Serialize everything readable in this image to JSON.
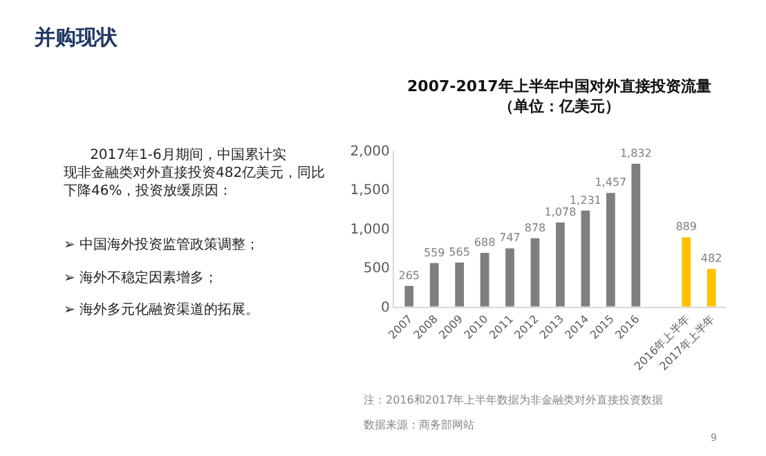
{
  "chart_data": {
    "type": "bar",
    "title": "2007-2017年上半年中国对外直接投资流量",
    "subtitle": "（单位：亿美元）",
    "categories": [
      "2007",
      "2008",
      "2009",
      "2010",
      "2011",
      "2012",
      "2013",
      "2014",
      "2015",
      "2016",
      null,
      "2016年上半年",
      "2017年上半年"
    ],
    "values": [
      265,
      559,
      565,
      688,
      747,
      878,
      1078,
      1231,
      1457,
      1832,
      null,
      889,
      482
    ],
    "colors": [
      "#7f7f7f",
      "#7f7f7f",
      "#7f7f7f",
      "#7f7f7f",
      "#7f7f7f",
      "#7f7f7f",
      "#7f7f7f",
      "#7f7f7f",
      "#7f7f7f",
      "#7f7f7f",
      "#7f7f7f",
      "#ffc000",
      "#ffc000"
    ],
    "value_labels": [
      "265",
      "559",
      "565",
      "688",
      "747",
      "878",
      "1,078",
      "1,231",
      "1,457",
      "1,832",
      null,
      "889",
      "482"
    ],
    "ylim": [
      0,
      2000
    ],
    "yticks": [
      {
        "value": 0,
        "label": "0"
      },
      {
        "value": 500,
        "label": "500"
      },
      {
        "value": 1000,
        "label": "1,000"
      },
      {
        "value": 1500,
        "label": "1,500"
      },
      {
        "value": 2000,
        "label": "2,000"
      }
    ],
    "annotations": [
      "并购现状",
      "2017年1-6月期间，中国累计实现非金融类对外直接投资482亿美元，同比下降46%，投资放缓原因：",
      "➢ 中国海外投资监管政策调整；",
      "➢ 海外不稳定因素增多；",
      "➢ 海外多元化融资渠道的拓展。",
      "注：2016和2017年上半年数据为非金融类对外直接投资数据",
      "数据来源：商务部网站",
      "9"
    ]
  }
}
